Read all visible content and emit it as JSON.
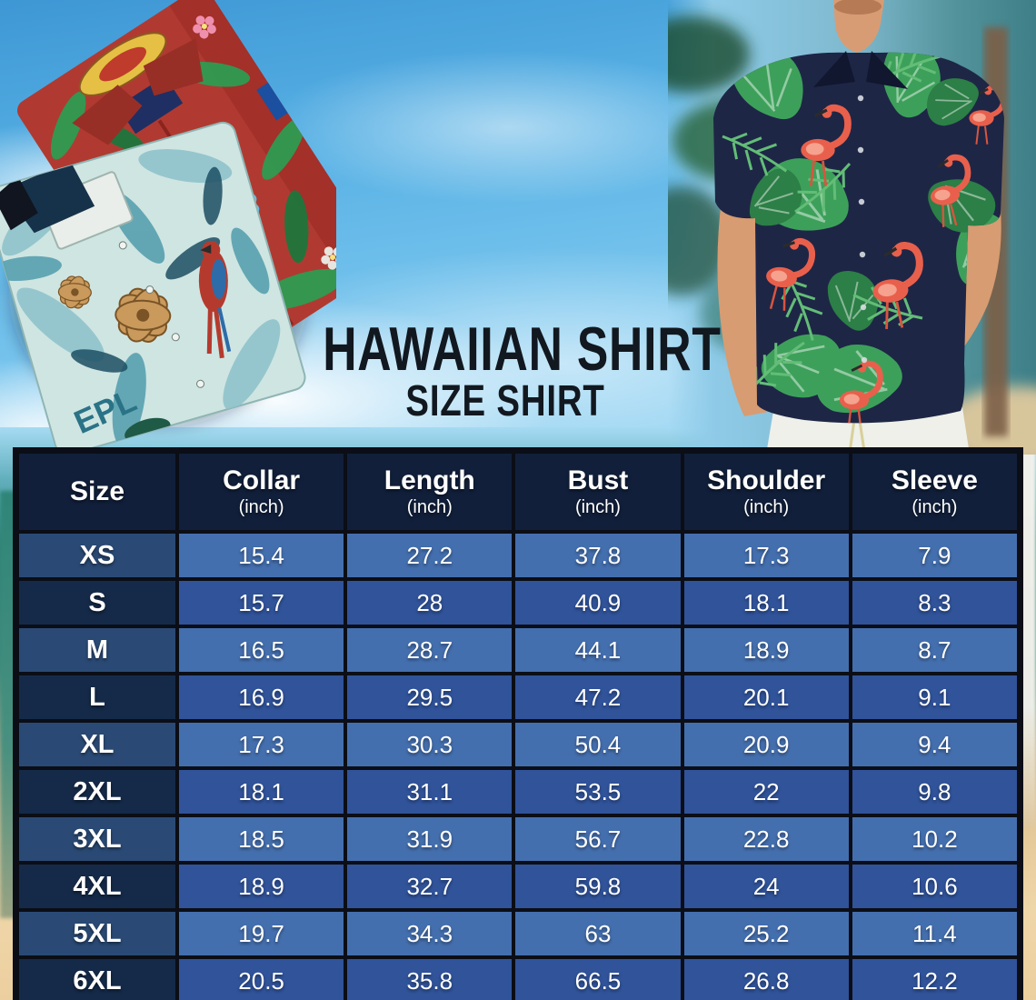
{
  "header": {
    "title": "HAWAIIAN SHIRT",
    "subtitle": "SIZE SHIRT"
  },
  "photos": {
    "left": {
      "name": "folded-hawaiian-shirts-photo",
      "description_colors": {
        "red_shirt": "#b03a31",
        "teal_shirt": "#cfe5e2"
      },
      "print_text": "EPL"
    },
    "right": {
      "name": "model-wearing-flamingo-shirt-photo",
      "description_colors": {
        "shirt": "#1e2646",
        "leaves": "#3da05a",
        "flamingo": "#e8604c",
        "pants": "#eef0e9"
      }
    }
  },
  "size_table": {
    "columns": [
      {
        "label": "Size",
        "unit": ""
      },
      {
        "label": "Collar",
        "unit": "(inch)"
      },
      {
        "label": "Length",
        "unit": "(inch)"
      },
      {
        "label": "Bust",
        "unit": "(inch)"
      },
      {
        "label": "Shoulder",
        "unit": "(inch)"
      },
      {
        "label": "Sleeve",
        "unit": "(inch)"
      }
    ],
    "rows": [
      {
        "size": "XS",
        "values": [
          "15.4",
          "27.2",
          "37.8",
          "17.3",
          "7.9"
        ]
      },
      {
        "size": "S",
        "values": [
          "15.7",
          "28",
          "40.9",
          "18.1",
          "8.3"
        ]
      },
      {
        "size": "M",
        "values": [
          "16.5",
          "28.7",
          "44.1",
          "18.9",
          "8.7"
        ]
      },
      {
        "size": "L",
        "values": [
          "16.9",
          "29.5",
          "47.2",
          "20.1",
          "9.1"
        ]
      },
      {
        "size": "XL",
        "values": [
          "17.3",
          "30.3",
          "50.4",
          "20.9",
          "9.4"
        ]
      },
      {
        "size": "2XL",
        "values": [
          "18.1",
          "31.1",
          "53.5",
          "22",
          "9.8"
        ]
      },
      {
        "size": "3XL",
        "values": [
          "18.5",
          "31.9",
          "56.7",
          "22.8",
          "10.2"
        ]
      },
      {
        "size": "4XL",
        "values": [
          "18.9",
          "32.7",
          "59.8",
          "24",
          "10.6"
        ]
      },
      {
        "size": "5XL",
        "values": [
          "19.7",
          "34.3",
          "63",
          "25.2",
          "11.4"
        ]
      },
      {
        "size": "6XL",
        "values": [
          "20.5",
          "35.8",
          "66.5",
          "26.8",
          "12.2"
        ]
      }
    ],
    "colors": {
      "header_bg": "#111f3a",
      "row_odd_label_bg": "#2a4a75",
      "row_odd_value_bg": "#446fae",
      "row_even_label_bg": "#152a49",
      "row_even_value_bg": "#30539a",
      "grid": "#0b0e16",
      "text": "#ffffff"
    }
  }
}
